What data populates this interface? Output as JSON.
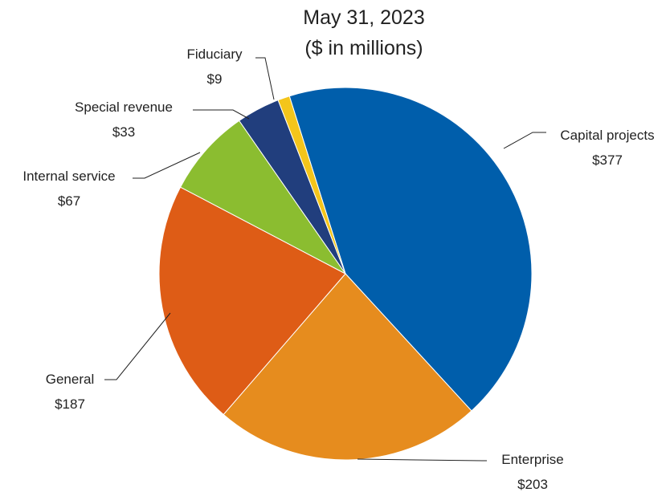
{
  "chart_data": {
    "type": "pie",
    "title_line1": "May 31, 2023",
    "title_line2": "($ in millions)",
    "slices": [
      {
        "name": "Capital projects",
        "value_label": "$377",
        "value": 377,
        "color": "#005EAB"
      },
      {
        "name": "Enterprise",
        "value_label": "$203",
        "value": 203,
        "color": "#E68C1E"
      },
      {
        "name": "General",
        "value_label": "$187",
        "value": 187,
        "color": "#DE5C16"
      },
      {
        "name": "Internal service",
        "value_label": "$67",
        "value": 67,
        "color": "#8BBD30"
      },
      {
        "name": "Special revenue",
        "value_label": "$33",
        "value": 33,
        "color": "#213E7D"
      },
      {
        "name": "Fiduciary",
        "value_label": "$9",
        "value": 9,
        "color": "#F4C51B"
      }
    ],
    "legend": "none"
  }
}
